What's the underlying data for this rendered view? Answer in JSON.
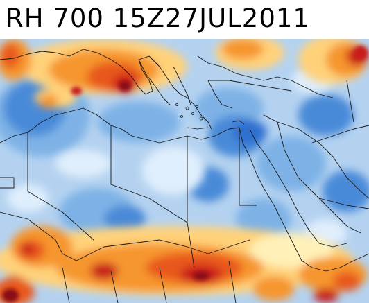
{
  "title": "RH 700 15Z27JUL2011",
  "colors": {
    "pale": "#dfeefc",
    "light_blue": "#b4d2f0",
    "mid_blue": "#7eb2e6",
    "blue": "#4a8ad8",
    "deep_blue": "#2f6fd0",
    "cream": "#fff1b8",
    "yellow": "#ffd27a",
    "orange": "#f6962e",
    "red_orange": "#e8581f",
    "red": "#c81e1e",
    "dark_red": "#8a0f12",
    "borders": "#1a1a1a"
  }
}
